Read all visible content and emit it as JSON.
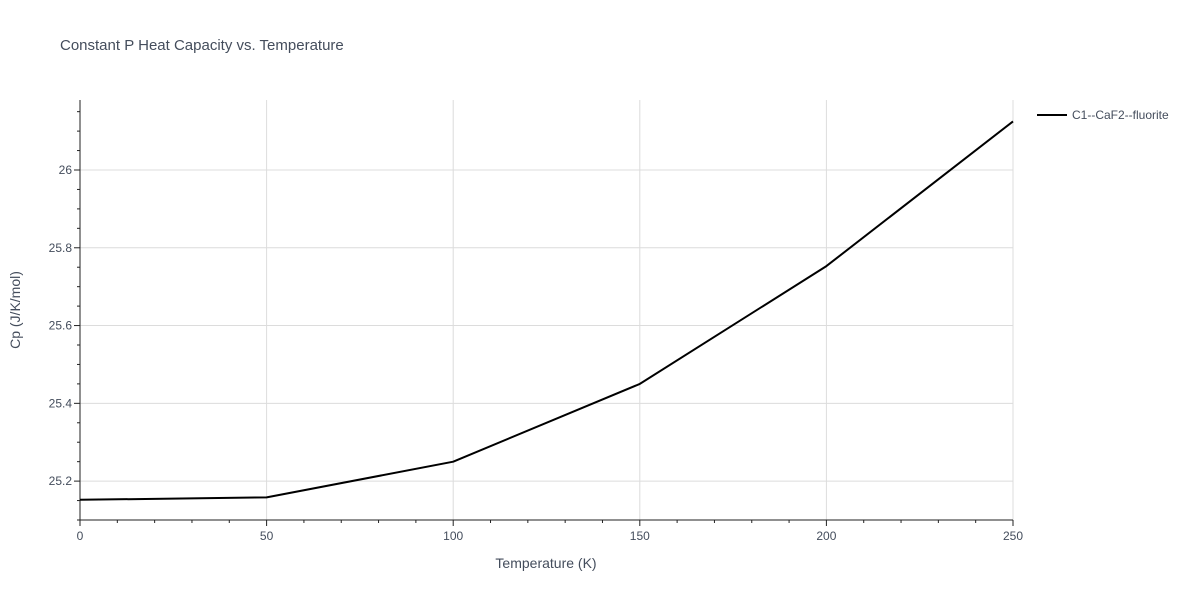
{
  "chart_data": {
    "type": "line",
    "title": "Constant P Heat Capacity vs. Temperature",
    "xlabel": "Temperature (K)",
    "ylabel": "Cp (J/K/mol)",
    "xlim": [
      0,
      250
    ],
    "ylim": [
      25.1,
      26.18
    ],
    "x_ticks": [
      0,
      50,
      100,
      150,
      200,
      250
    ],
    "y_ticks": [
      25.2,
      25.4,
      25.6,
      25.8,
      26
    ],
    "x_tick_labels": [
      "0",
      "50",
      "100",
      "150",
      "200",
      "250"
    ],
    "y_tick_labels": [
      "25.2",
      "25.4",
      "25.6",
      "25.8",
      "26"
    ],
    "grid": true,
    "legend_position": "top-right-outside",
    "series": [
      {
        "name": "C1--CaF2--fluorite",
        "color": "#000000",
        "x": [
          0,
          50,
          100,
          150,
          200,
          250
        ],
        "y": [
          25.152,
          25.158,
          25.25,
          25.45,
          25.753,
          26.125
        ]
      }
    ]
  }
}
